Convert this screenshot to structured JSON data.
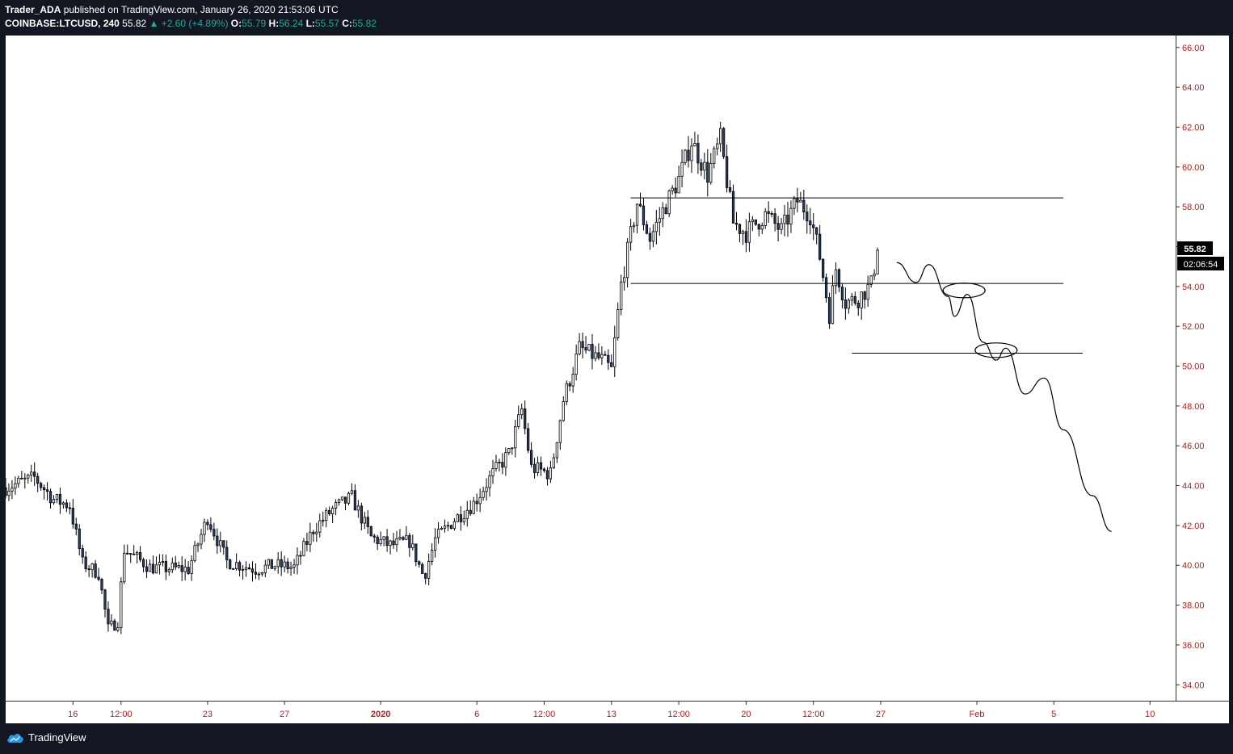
{
  "header": {
    "author": "Trader_ADA",
    "published_text": "published on TradingView.com, January 26, 2020 21:53:06 UTC",
    "symbol": "COINBASE:LTCUSD, 240",
    "last": "55.82",
    "change": "▲ +2.60 (+4.89%)",
    "o_label": "O:",
    "o_value": "55.79",
    "h_label": "H:",
    "h_value": "56.24",
    "l_label": "L:",
    "l_value": "55.57",
    "c_label": "C:",
    "c_value": "55.82"
  },
  "price_badge": "55.82",
  "countdown_badge": "02:06:54",
  "footer": {
    "brand": "TradingView"
  },
  "colors": {
    "bg": "#131722",
    "chart_bg": "#ffffff",
    "candle_up": "#ffffff",
    "candle_down": "#2a3f6c",
    "wick": "#000000",
    "axis_text": "#b71c1c",
    "accent_green": "#26a69a"
  },
  "icons": [
    "tradingview-cloud-icon"
  ],
  "chart_data": {
    "type": "candlestick",
    "title": "",
    "yaxis": {
      "range": [
        33.2,
        66.6
      ],
      "ticks": [
        "34.00",
        "36.00",
        "38.00",
        "40.00",
        "42.00",
        "44.00",
        "46.00",
        "48.00",
        "50.00",
        "52.00",
        "54.00",
        "56.00",
        "58.00",
        "60.00",
        "62.00",
        "64.00",
        "66.00"
      ]
    },
    "xaxis": {
      "range": [
        "2019-12-12T12:00",
        "2020-02-11T08:00"
      ],
      "ticks": [
        {
          "label": "16",
          "date": "2019-12-16T00:00"
        },
        {
          "label": "12:00",
          "date": "2019-12-18T12:00"
        },
        {
          "label": "23",
          "date": "2019-12-23T00:00"
        },
        {
          "label": "27",
          "date": "2019-12-27T00:00"
        },
        {
          "label": "2020",
          "date": "2020-01-01T00:00",
          "bold": true
        },
        {
          "label": "6",
          "date": "2020-01-06T00:00"
        },
        {
          "label": "12:00",
          "date": "2020-01-09T12:00"
        },
        {
          "label": "13",
          "date": "2020-01-13T00:00"
        },
        {
          "label": "12:00",
          "date": "2020-01-16T12:00"
        },
        {
          "label": "20",
          "date": "2020-01-20T00:00"
        },
        {
          "label": "12:00",
          "date": "2020-01-23T12:00"
        },
        {
          "label": "27",
          "date": "2020-01-27T00:00"
        },
        {
          "label": "Feb",
          "date": "2020-02-01T00:00"
        },
        {
          "label": "5",
          "date": "2020-02-05T00:00"
        },
        {
          "label": "10",
          "date": "2020-02-10T00:00"
        }
      ]
    },
    "price_path": [
      [
        "2019-12-12T12:00",
        43.9
      ],
      [
        "2019-12-14T00:00",
        44.4
      ],
      [
        "2019-12-15T00:00",
        43.3
      ],
      [
        "2019-12-15T20:00",
        43.0
      ],
      [
        "2019-12-16T12:00",
        40.1
      ],
      [
        "2019-12-17T08:00",
        39.6
      ],
      [
        "2019-12-17T20:00",
        36.8
      ],
      [
        "2019-12-18T08:00",
        37.2
      ],
      [
        "2019-12-18T16:00",
        40.8
      ],
      [
        "2019-12-20T00:00",
        39.9
      ],
      [
        "2019-12-22T00:00",
        39.8
      ],
      [
        "2019-12-23T00:00",
        42.4
      ],
      [
        "2019-12-24T00:00",
        40.2
      ],
      [
        "2019-12-25T12:00",
        39.8
      ],
      [
        "2019-12-26T12:00",
        40.0
      ],
      [
        "2019-12-27T12:00",
        39.9
      ],
      [
        "2019-12-28T12:00",
        41.8
      ],
      [
        "2019-12-29T12:00",
        42.8
      ],
      [
        "2019-12-30T12:00",
        43.4
      ],
      [
        "2019-12-31T12:00",
        41.4
      ],
      [
        "2020-01-01T12:00",
        41.0
      ],
      [
        "2020-01-02T12:00",
        41.2
      ],
      [
        "2020-01-03T06:00",
        39.4
      ],
      [
        "2020-01-03T20:00",
        41.3
      ],
      [
        "2020-01-04T20:00",
        42.3
      ],
      [
        "2020-01-05T20:00",
        43.1
      ],
      [
        "2020-01-06T20:00",
        44.6
      ],
      [
        "2020-01-07T16:00",
        45.6
      ],
      [
        "2020-01-08T08:00",
        47.8
      ],
      [
        "2020-01-08T20:00",
        44.9
      ],
      [
        "2020-01-09T20:00",
        44.6
      ],
      [
        "2020-01-10T12:00",
        48.3
      ],
      [
        "2020-01-11T08:00",
        50.9
      ],
      [
        "2020-01-12T12:00",
        50.3
      ],
      [
        "2020-01-13T00:00",
        49.8
      ],
      [
        "2020-01-13T12:00",
        54.1
      ],
      [
        "2020-01-14T08:00",
        58.2
      ],
      [
        "2020-01-15T00:00",
        56.4
      ],
      [
        "2020-01-15T16:00",
        57.8
      ],
      [
        "2020-01-16T12:00",
        59.4
      ],
      [
        "2020-01-17T04:00",
        61.3
      ],
      [
        "2020-01-18T00:00",
        59.6
      ],
      [
        "2020-01-18T16:00",
        61.4
      ],
      [
        "2020-01-19T08:00",
        57.2
      ],
      [
        "2020-01-20T00:00",
        56.7
      ],
      [
        "2020-01-21T00:00",
        57.6
      ],
      [
        "2020-01-21T20:00",
        56.8
      ],
      [
        "2020-01-22T16:00",
        58.3
      ],
      [
        "2020-01-23T08:00",
        57.6
      ],
      [
        "2020-01-23T20:00",
        55.5
      ],
      [
        "2020-01-24T08:00",
        52.6
      ],
      [
        "2020-01-24T16:00",
        54.9
      ],
      [
        "2020-01-25T04:00",
        53.2
      ],
      [
        "2020-01-25T20:00",
        53.4
      ],
      [
        "2020-01-26T12:00",
        54.1
      ],
      [
        "2020-01-26T20:00",
        55.82
      ]
    ],
    "annotations": {
      "horizontal_levels": [
        {
          "price": 58.45,
          "from": "2020-01-14T00:00",
          "to": "2020-02-05T12:00"
        },
        {
          "price": 54.15,
          "from": "2020-01-14T00:00",
          "to": "2020-02-05T12:00"
        },
        {
          "price": 50.65,
          "from": "2020-01-25T12:00",
          "to": "2020-02-06T12:00"
        }
      ],
      "projection_path": [
        [
          "2020-01-27T20:00",
          55.2
        ],
        [
          "2020-01-28T20:00",
          54.2
        ],
        [
          "2020-01-29T12:00",
          55.1
        ],
        [
          "2020-01-30T12:00",
          53.5
        ],
        [
          "2020-01-30T20:00",
          52.5
        ],
        [
          "2020-01-31T12:00",
          53.6
        ],
        [
          "2020-02-01T08:00",
          51.2
        ],
        [
          "2020-02-02T00:00",
          50.3
        ],
        [
          "2020-02-02T12:00",
          50.9
        ],
        [
          "2020-02-03T12:00",
          48.6
        ],
        [
          "2020-02-04T12:00",
          49.4
        ],
        [
          "2020-02-05T12:00",
          46.8
        ],
        [
          "2020-02-07T00:00",
          43.5
        ],
        [
          "2020-02-08T00:00",
          41.7
        ]
      ],
      "circled_zones": [
        {
          "center": [
            "2020-01-31T08:00",
            53.8
          ]
        },
        {
          "center": [
            "2020-02-02T00:00",
            50.8
          ]
        }
      ]
    }
  }
}
